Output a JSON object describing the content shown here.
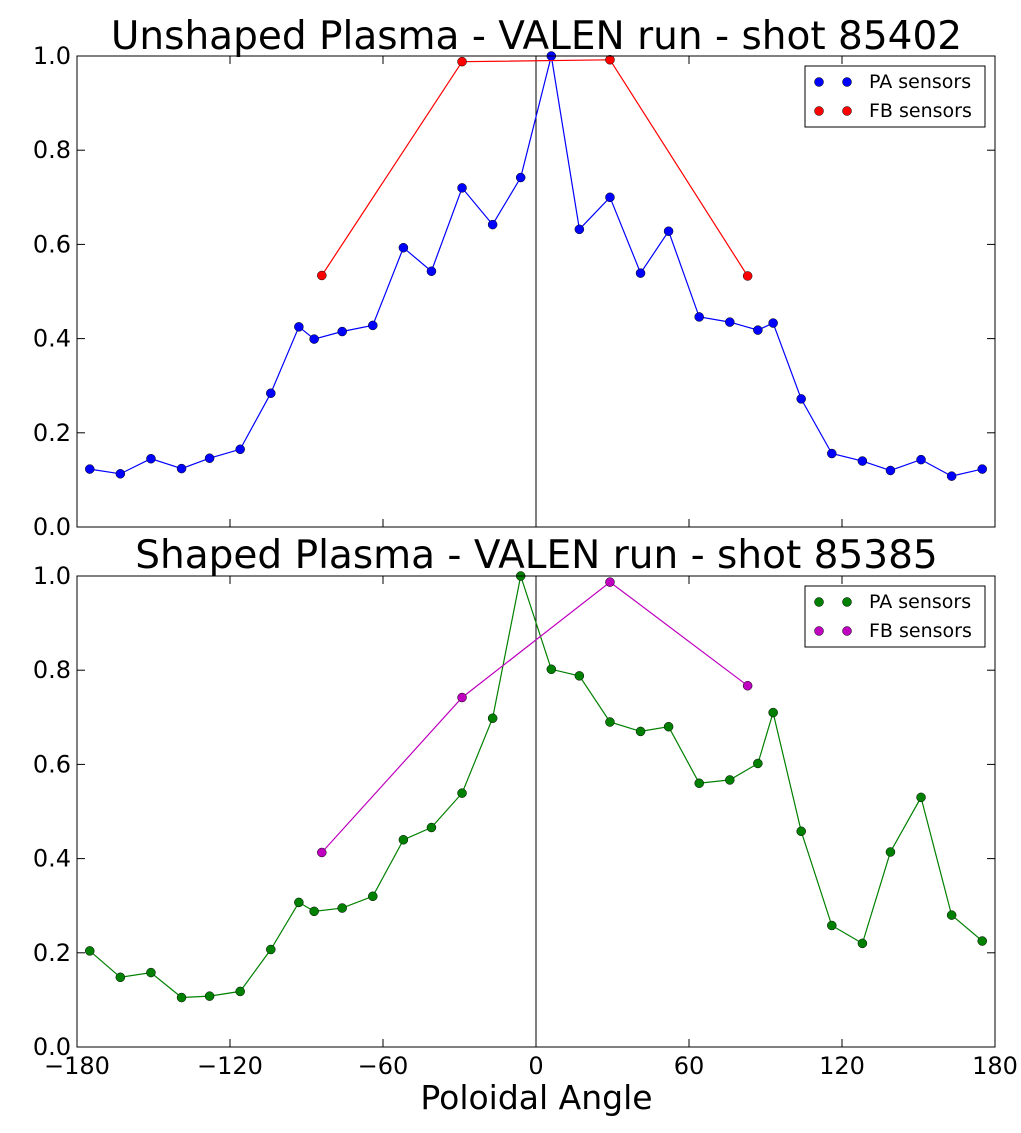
{
  "figure": {
    "xlabel": "Poloidal Angle"
  },
  "chart_data": [
    {
      "type": "line",
      "title": "Unshaped Plasma - VALEN run - shot 85402",
      "xlabel": "",
      "ylabel": "",
      "xlim": [
        -180,
        180
      ],
      "ylim": [
        0,
        1
      ],
      "xticks": [
        -180,
        -120,
        -60,
        0,
        60,
        120,
        180
      ],
      "yticks": [
        "0.0",
        "0.2",
        "0.4",
        "0.6",
        "0.8",
        "1.0"
      ],
      "show_xtick_labels": false,
      "grid": false,
      "legend_position": "top-right",
      "vline_x": 0,
      "series": [
        {
          "name": "PA sensors",
          "color": "#0000ff",
          "x": [
            -175,
            -163,
            -151,
            -139,
            -128,
            -116,
            -104,
            -93,
            -87,
            -76,
            -64,
            -52,
            -41,
            -29,
            -17,
            -6,
            6,
            17,
            29,
            41,
            52,
            64,
            76,
            87,
            93,
            104,
            116,
            128,
            139,
            151,
            163,
            175
          ],
          "y": [
            0.123,
            0.113,
            0.145,
            0.124,
            0.146,
            0.165,
            0.284,
            0.425,
            0.399,
            0.415,
            0.428,
            0.593,
            0.543,
            0.72,
            0.642,
            0.742,
            1.0,
            0.632,
            0.7,
            0.539,
            0.628,
            0.446,
            0.435,
            0.418,
            0.433,
            0.272,
            0.156,
            0.14,
            0.12,
            0.143,
            0.108,
            0.123
          ]
        },
        {
          "name": "FB sensors",
          "color": "#ff0000",
          "x": [
            -84,
            -29,
            29,
            83
          ],
          "y": [
            0.534,
            0.988,
            0.992,
            0.533
          ]
        }
      ]
    },
    {
      "type": "line",
      "title": "Shaped Plasma - VALEN run - shot 85385",
      "xlabel": "Poloidal Angle",
      "ylabel": "",
      "xlim": [
        -180,
        180
      ],
      "ylim": [
        0,
        1
      ],
      "xticks": [
        -180,
        -120,
        -60,
        0,
        60,
        120,
        180
      ],
      "xtick_labels": [
        "−180",
        "−120",
        "−60",
        "0",
        "60",
        "120",
        "180"
      ],
      "yticks": [
        "0.0",
        "0.2",
        "0.4",
        "0.6",
        "0.8",
        "1.0"
      ],
      "show_xtick_labels": true,
      "grid": false,
      "legend_position": "top-right",
      "vline_x": 0,
      "series": [
        {
          "name": "PA sensors",
          "color": "#008000",
          "x": [
            -175,
            -163,
            -151,
            -139,
            -128,
            -116,
            -104,
            -93,
            -87,
            -76,
            -64,
            -52,
            -41,
            -29,
            -17,
            -6,
            6,
            17,
            29,
            41,
            52,
            64,
            76,
            87,
            93,
            104,
            116,
            128,
            139,
            151,
            163,
            175
          ],
          "y": [
            0.204,
            0.148,
            0.158,
            0.105,
            0.108,
            0.118,
            0.207,
            0.307,
            0.288,
            0.295,
            0.32,
            0.44,
            0.466,
            0.539,
            0.698,
            1.0,
            0.802,
            0.788,
            0.69,
            0.67,
            0.68,
            0.56,
            0.567,
            0.602,
            0.71,
            0.458,
            0.258,
            0.22,
            0.414,
            0.53,
            0.28,
            0.225
          ]
        },
        {
          "name": "FB sensors",
          "color": "#bf00bf",
          "x": [
            -84,
            -29,
            29,
            83
          ],
          "y": [
            0.413,
            0.742,
            0.987,
            0.767
          ]
        }
      ]
    }
  ]
}
